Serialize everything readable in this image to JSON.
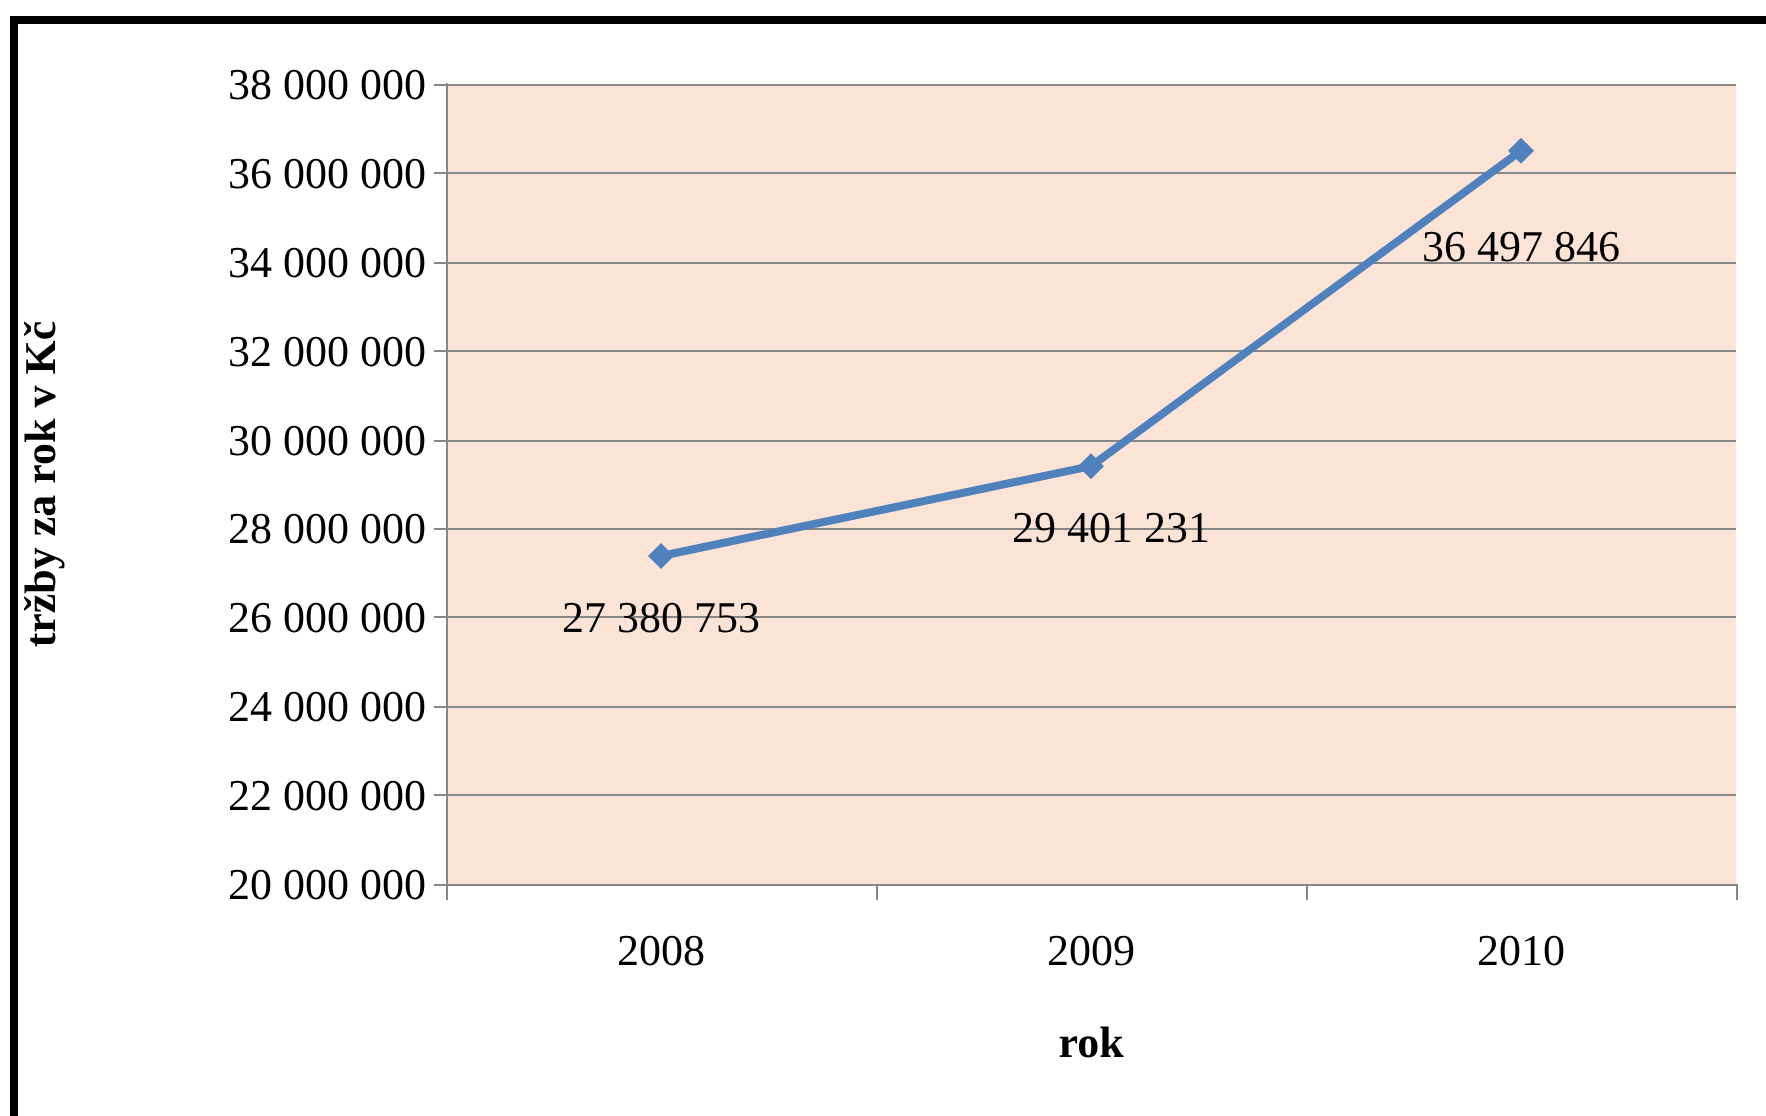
{
  "chart_data": {
    "type": "line",
    "xlabel": "rok",
    "ylabel": "tržby za rok v Kč",
    "categories": [
      "2008",
      "2009",
      "2010"
    ],
    "series": [
      {
        "color": "#4f81bd",
        "values": [
          27380753,
          29401231,
          36497846
        ]
      }
    ],
    "ylim": [
      20000000,
      38000000
    ],
    "yticks": [
      20000000,
      22000000,
      24000000,
      26000000,
      28000000,
      30000000,
      32000000,
      34000000,
      36000000,
      38000000
    ],
    "grid": "y",
    "marker": "diamond",
    "line_style": "solid",
    "data_labels": true
  }
}
